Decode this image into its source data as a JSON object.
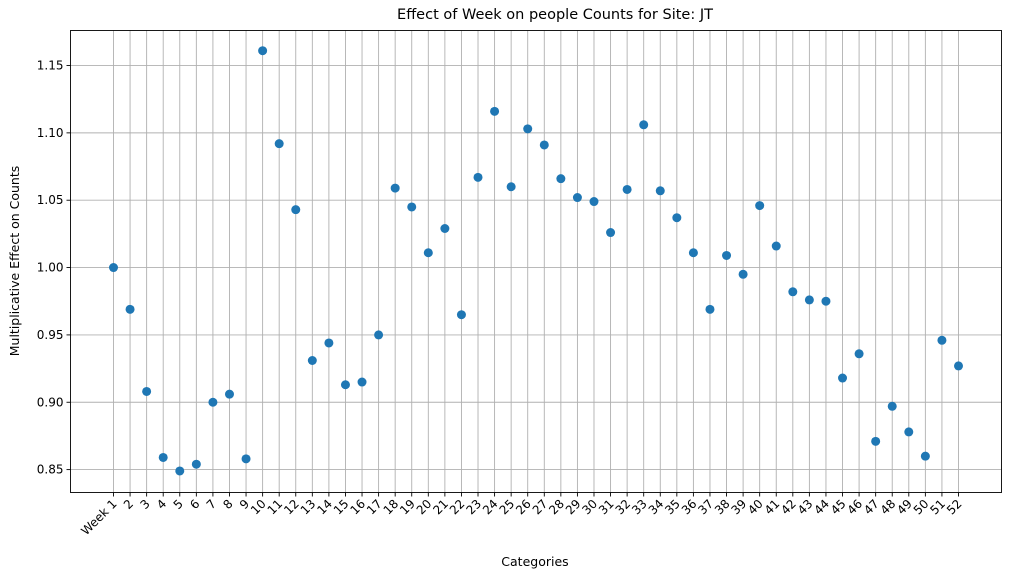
{
  "chart_data": {
    "type": "scatter",
    "title": "Effect of Week on people Counts for Site: JT",
    "xlabel": "Categories",
    "ylabel": "Multiplicative Effect on Counts",
    "grid": true,
    "ylim": [
      0.833,
      1.176
    ],
    "yticks": [
      "0.85",
      "0.90",
      "0.95",
      "1.00",
      "1.05",
      "1.10",
      "1.15"
    ],
    "ytick_values": [
      0.85,
      0.9,
      0.95,
      1.0,
      1.05,
      1.1,
      1.15
    ],
    "categories": [
      "Week 1",
      "2",
      "3",
      "4",
      "5",
      "6",
      "7",
      "8",
      "9",
      "10",
      "11",
      "12",
      "13",
      "14",
      "15",
      "16",
      "17",
      "18",
      "19",
      "20",
      "21",
      "22",
      "23",
      "24",
      "25",
      "26",
      "27",
      "28",
      "29",
      "30",
      "31",
      "32",
      "33",
      "34",
      "35",
      "36",
      "37",
      "38",
      "39",
      "40",
      "41",
      "42",
      "43",
      "44",
      "45",
      "46",
      "47",
      "48",
      "49",
      "50",
      "51",
      "52"
    ],
    "values": [
      1.0,
      0.969,
      0.908,
      0.859,
      0.849,
      0.854,
      0.9,
      0.906,
      0.858,
      1.161,
      1.092,
      1.043,
      0.931,
      0.944,
      0.913,
      0.915,
      0.95,
      1.059,
      1.045,
      1.011,
      1.029,
      0.965,
      1.067,
      1.116,
      1.06,
      1.103,
      1.091,
      1.066,
      1.052,
      1.049,
      1.026,
      1.058,
      1.106,
      1.057,
      1.037,
      1.011,
      0.969,
      1.009,
      0.995,
      1.046,
      1.016,
      0.982,
      0.976,
      0.975,
      0.918,
      0.936,
      0.871,
      0.897,
      0.878,
      0.86,
      0.946,
      0.927
    ],
    "color": "#1f77b4"
  }
}
